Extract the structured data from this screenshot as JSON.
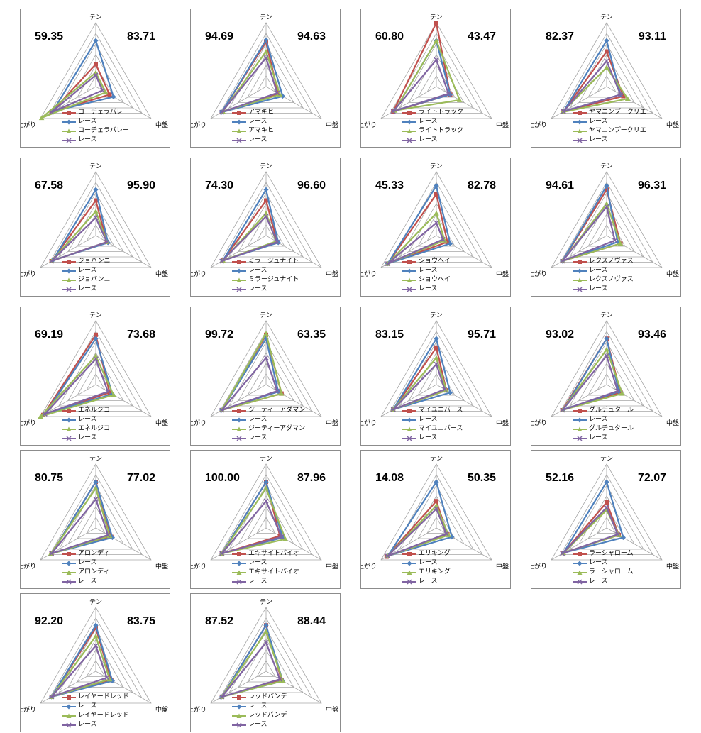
{
  "axes": [
    "テン",
    "中盤",
    "上がり"
  ],
  "series_colors": {
    "horse": "#C0504D",
    "race": "#4F81BD",
    "horse2": "#9BBB59",
    "race2": "#8064A2"
  },
  "chart_data": [
    {
      "type": "radar",
      "left_value": "59.35",
      "right_value": "83.71",
      "labels": [
        "コーチェラバレー",
        "レース",
        "コーチェラバレー",
        "レース"
      ],
      "series": [
        [
          0.35,
          0.25,
          0.8
        ],
        [
          0.72,
          0.32,
          0.78
        ],
        [
          0.22,
          0.18,
          0.98
        ],
        [
          0.18,
          0.12,
          0.8
        ]
      ]
    },
    {
      "type": "radar",
      "left_value": "94.69",
      "right_value": "94.63",
      "labels": [
        "アマキヒ",
        "レース",
        "アマキヒ",
        "レース"
      ],
      "series": [
        [
          0.7,
          0.22,
          0.8
        ],
        [
          0.73,
          0.3,
          0.8
        ],
        [
          0.55,
          0.25,
          0.78
        ],
        [
          0.45,
          0.2,
          0.8
        ]
      ]
    },
    {
      "type": "radar",
      "left_value": "60.80",
      "right_value": "43.47",
      "labels": [
        "ライトトラック",
        "レース",
        "ライトトラック",
        "レース"
      ],
      "series": [
        [
          1.0,
          0.25,
          0.78
        ],
        [
          0.72,
          0.25,
          0.75
        ],
        [
          0.72,
          0.42,
          0.75
        ],
        [
          0.42,
          0.22,
          0.78
        ]
      ]
    },
    {
      "type": "radar",
      "left_value": "82.37",
      "right_value": "93.11",
      "labels": [
        "ヤマニンプークリエ",
        "レース",
        "ヤマニンプークリエ",
        "レース"
      ],
      "series": [
        [
          0.55,
          0.3,
          0.78
        ],
        [
          0.72,
          0.25,
          0.78
        ],
        [
          0.3,
          0.38,
          0.8
        ],
        [
          0.4,
          0.25,
          0.78
        ]
      ]
    },
    {
      "type": "radar",
      "left_value": "67.58",
      "right_value": "95.90",
      "labels": [
        "ジョバンニ",
        "レース",
        "ジョバンニ",
        "レース"
      ],
      "series": [
        [
          0.55,
          0.2,
          0.8
        ],
        [
          0.72,
          0.22,
          0.78
        ],
        [
          0.38,
          0.2,
          0.8
        ],
        [
          0.28,
          0.2,
          0.8
        ]
      ]
    },
    {
      "type": "radar",
      "left_value": "74.30",
      "right_value": "96.60",
      "labels": [
        "ミラージュナイト",
        "レース",
        "ミラージュナイト",
        "レース"
      ],
      "series": [
        [
          0.55,
          0.2,
          0.78
        ],
        [
          0.72,
          0.22,
          0.78
        ],
        [
          0.35,
          0.18,
          0.78
        ],
        [
          0.3,
          0.2,
          0.8
        ]
      ]
    },
    {
      "type": "radar",
      "left_value": "45.33",
      "right_value": "82.78",
      "labels": [
        "ショウヘイ",
        "レース",
        "ショウヘイ",
        "レース"
      ],
      "series": [
        [
          0.65,
          0.2,
          0.88
        ],
        [
          0.78,
          0.25,
          0.88
        ],
        [
          0.35,
          0.15,
          0.88
        ],
        [
          0.2,
          0.12,
          0.88
        ]
      ]
    },
    {
      "type": "radar",
      "left_value": "94.61",
      "right_value": "96.31",
      "labels": [
        "レクスノヴァス",
        "レース",
        "レクスノヴァス",
        "レース"
      ],
      "series": [
        [
          0.72,
          0.25,
          0.8
        ],
        [
          0.78,
          0.2,
          0.8
        ],
        [
          0.5,
          0.25,
          0.8
        ],
        [
          0.45,
          0.15,
          0.8
        ]
      ]
    },
    {
      "type": "radar",
      "left_value": "69.19",
      "right_value": "73.68",
      "labels": [
        "エネルジコ",
        "レース",
        "エネルジコ",
        "レース"
      ],
      "series": [
        [
          0.78,
          0.25,
          0.95
        ],
        [
          0.72,
          0.3,
          0.92
        ],
        [
          0.45,
          0.32,
          1.0
        ],
        [
          0.4,
          0.22,
          0.92
        ]
      ]
    },
    {
      "type": "radar",
      "left_value": "99.72",
      "right_value": "63.35",
      "labels": [
        "ジーティーアダマン",
        "レース",
        "ジーティーアダマン",
        "レース"
      ],
      "series": [
        [
          0.78,
          0.28,
          0.8
        ],
        [
          0.72,
          0.22,
          0.8
        ],
        [
          0.8,
          0.28,
          0.8
        ],
        [
          0.42,
          0.2,
          0.8
        ]
      ]
    },
    {
      "type": "radar",
      "left_value": "83.15",
      "right_value": "95.71",
      "labels": [
        "マイユニバース",
        "レース",
        "マイユニバース",
        "レース"
      ],
      "series": [
        [
          0.58,
          0.18,
          0.78
        ],
        [
          0.72,
          0.25,
          0.78
        ],
        [
          0.42,
          0.18,
          0.78
        ],
        [
          0.32,
          0.15,
          0.78
        ]
      ]
    },
    {
      "type": "radar",
      "left_value": "93.02",
      "right_value": "93.46",
      "labels": [
        "グルチュタール",
        "レース",
        "グルチュタール",
        "レース"
      ],
      "series": [
        [
          0.72,
          0.25,
          0.8
        ],
        [
          0.72,
          0.22,
          0.78
        ],
        [
          0.55,
          0.28,
          0.8
        ],
        [
          0.45,
          0.2,
          0.8
        ]
      ]
    },
    {
      "type": "radar",
      "left_value": "80.75",
      "right_value": "77.02",
      "labels": [
        "アロンディ",
        "レース",
        "アロンディ",
        "レース"
      ],
      "series": [
        [
          0.72,
          0.28,
          0.8
        ],
        [
          0.72,
          0.3,
          0.8
        ],
        [
          0.62,
          0.25,
          0.82
        ],
        [
          0.45,
          0.22,
          0.8
        ]
      ]
    },
    {
      "type": "radar",
      "left_value": "100.00",
      "right_value": "87.96",
      "labels": [
        "エキサイトバイオ",
        "レース",
        "エキサイトバイオ",
        "レース"
      ],
      "series": [
        [
          0.72,
          0.25,
          0.8
        ],
        [
          0.72,
          0.3,
          0.8
        ],
        [
          0.62,
          0.35,
          0.8
        ],
        [
          0.42,
          0.28,
          0.8
        ]
      ]
    },
    {
      "type": "radar",
      "left_value": "14.08",
      "right_value": "50.35",
      "labels": [
        "エリキング",
        "レース",
        "エリキング",
        "レース"
      ],
      "series": [
        [
          0.42,
          0.2,
          0.9
        ],
        [
          0.72,
          0.28,
          0.88
        ],
        [
          0.35,
          0.22,
          0.88
        ],
        [
          0.3,
          0.18,
          0.88
        ]
      ]
    },
    {
      "type": "radar",
      "left_value": "52.16",
      "right_value": "72.07",
      "labels": [
        "ラーシャローム",
        "レース",
        "ラーシャローム",
        "レース"
      ],
      "series": [
        [
          0.4,
          0.22,
          0.78
        ],
        [
          0.72,
          0.3,
          0.78
        ],
        [
          0.28,
          0.22,
          0.78
        ],
        [
          0.32,
          0.2,
          0.8
        ]
      ]
    },
    {
      "type": "radar",
      "left_value": "92.20",
      "right_value": "83.75",
      "labels": [
        "レイヤードレッド",
        "レース",
        "レイヤードレッド",
        "レース"
      ],
      "series": [
        [
          0.68,
          0.28,
          0.8
        ],
        [
          0.72,
          0.3,
          0.8
        ],
        [
          0.55,
          0.25,
          0.8
        ],
        [
          0.4,
          0.2,
          0.8
        ]
      ]
    },
    {
      "type": "radar",
      "left_value": "87.52",
      "right_value": "88.44",
      "labels": [
        "レッドバンデ",
        "レース",
        "レッドバンデ",
        "レース"
      ],
      "series": [
        [
          0.72,
          0.28,
          0.8
        ],
        [
          0.72,
          0.3,
          0.8
        ],
        [
          0.62,
          0.3,
          0.8
        ],
        [
          0.45,
          0.25,
          0.8
        ]
      ]
    }
  ]
}
